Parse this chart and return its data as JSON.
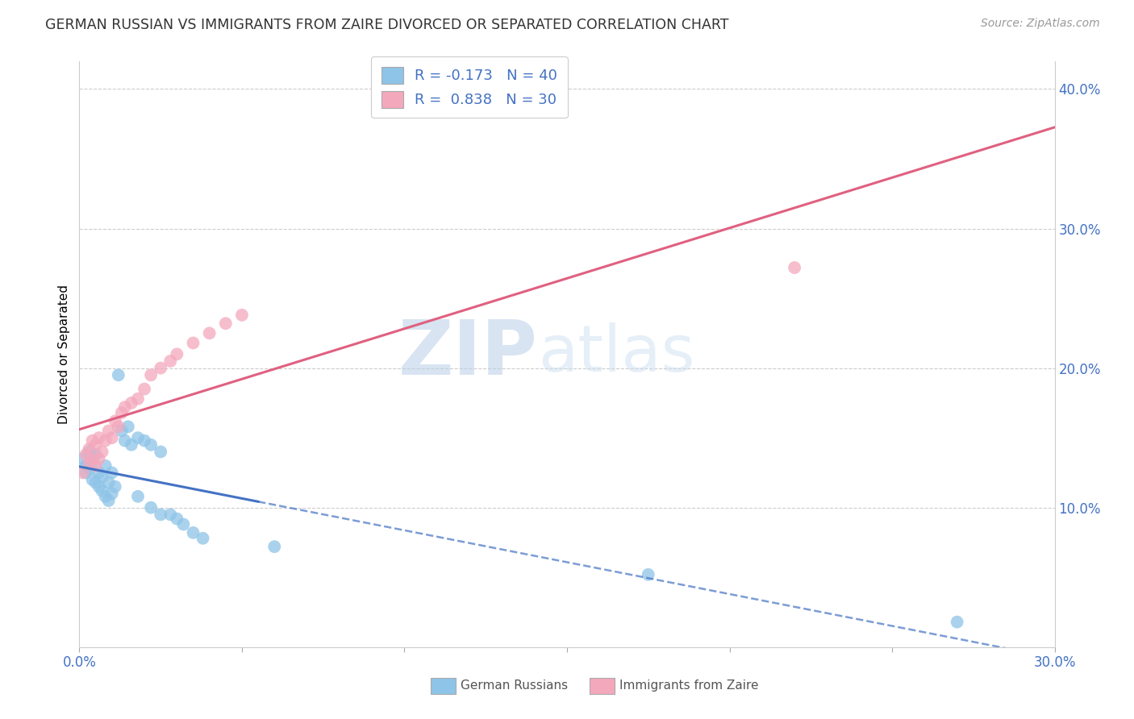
{
  "title": "GERMAN RUSSIAN VS IMMIGRANTS FROM ZAIRE DIVORCED OR SEPARATED CORRELATION CHART",
  "source": "Source: ZipAtlas.com",
  "ylabel": "Divorced or Separated",
  "right_yticks": [
    "",
    "10.0%",
    "20.0%",
    "30.0%",
    "40.0%"
  ],
  "right_ytick_vals": [
    0.0,
    0.1,
    0.2,
    0.3,
    0.4
  ],
  "xlim": [
    0.0,
    0.3
  ],
  "ylim": [
    0.0,
    0.42
  ],
  "legend_r1": "R = -0.173   N = 40",
  "legend_r2": "R =  0.838   N = 30",
  "color_blue": "#8ec4e8",
  "color_pink": "#f4a8bc",
  "line_blue": "#4472c4",
  "line_pink": "#e06080",
  "watermark_zip": "ZIP",
  "watermark_atlas": "atlas",
  "blue_scatter_x": [
    0.001,
    0.002,
    0.002,
    0.003,
    0.003,
    0.004,
    0.004,
    0.005,
    0.005,
    0.006,
    0.006,
    0.007,
    0.007,
    0.008,
    0.008,
    0.009,
    0.009,
    0.01,
    0.01,
    0.011,
    0.012,
    0.013,
    0.014,
    0.015,
    0.016,
    0.018,
    0.02,
    0.022,
    0.025,
    0.028,
    0.03,
    0.032,
    0.035,
    0.038,
    0.018,
    0.022,
    0.025,
    0.06,
    0.175,
    0.27
  ],
  "blue_scatter_y": [
    0.135,
    0.13,
    0.125,
    0.14,
    0.128,
    0.132,
    0.12,
    0.138,
    0.118,
    0.125,
    0.115,
    0.122,
    0.112,
    0.13,
    0.108,
    0.118,
    0.105,
    0.125,
    0.11,
    0.115,
    0.195,
    0.155,
    0.148,
    0.158,
    0.145,
    0.15,
    0.148,
    0.145,
    0.14,
    0.095,
    0.092,
    0.088,
    0.082,
    0.078,
    0.108,
    0.1,
    0.095,
    0.072,
    0.052,
    0.018
  ],
  "pink_scatter_x": [
    0.001,
    0.002,
    0.003,
    0.003,
    0.004,
    0.004,
    0.005,
    0.005,
    0.006,
    0.006,
    0.007,
    0.008,
    0.009,
    0.01,
    0.011,
    0.012,
    0.013,
    0.014,
    0.016,
    0.018,
    0.02,
    0.022,
    0.025,
    0.028,
    0.03,
    0.035,
    0.04,
    0.045,
    0.05,
    0.22
  ],
  "pink_scatter_y": [
    0.125,
    0.138,
    0.132,
    0.142,
    0.135,
    0.148,
    0.13,
    0.145,
    0.135,
    0.15,
    0.14,
    0.148,
    0.155,
    0.15,
    0.162,
    0.158,
    0.168,
    0.172,
    0.175,
    0.178,
    0.185,
    0.195,
    0.2,
    0.205,
    0.21,
    0.218,
    0.225,
    0.232,
    0.238,
    0.272
  ],
  "blue_line_solid_end": 0.055,
  "pink_line_end": 0.3
}
